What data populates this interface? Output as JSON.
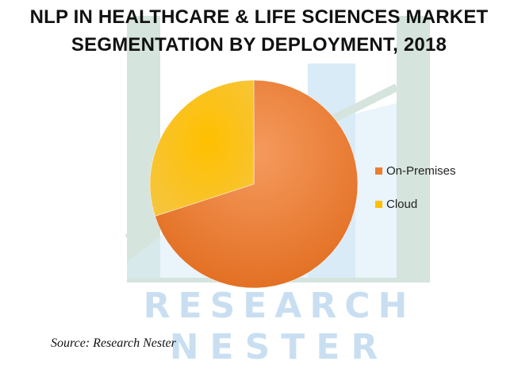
{
  "title_line_1": "NLP IN HEALTHCARE & LIFE SCIENCES MARKET",
  "title_line_2": "SEGMENTATION BY DEPLOYMENT, 2018",
  "source": "Source: Research Nester",
  "watermark": {
    "line_1": "RESEARCH",
    "line_2": "NESTER"
  },
  "chart_data": {
    "type": "pie",
    "title": "NLP IN HEALTHCARE & LIFE SCIENCES MARKET SEGMENTATION BY DEPLOYMENT, 2018",
    "categories": [
      "On-Premises",
      "Cloud"
    ],
    "values": [
      70,
      30
    ],
    "colors": [
      "#ED7D31",
      "#FFC000"
    ],
    "legend_position": "right"
  }
}
